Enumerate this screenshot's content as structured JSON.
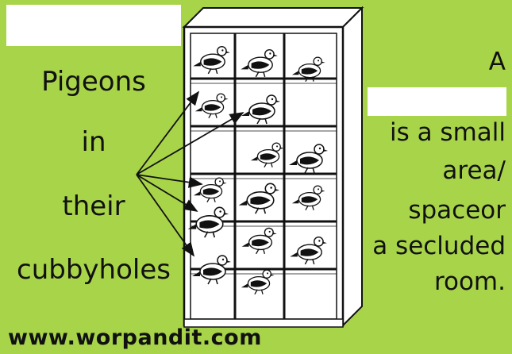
{
  "left_caption": {
    "lines": [
      "Pigeons",
      "in",
      "their",
      "cubbyholes"
    ]
  },
  "right_caption": {
    "first": "A",
    "lines": [
      "is a small",
      "area/",
      "spaceor",
      "a secluded",
      "room."
    ]
  },
  "footer": {
    "url": "www.worpandit.com"
  },
  "colors": {
    "background": "#a8d44a",
    "text": "#111111",
    "redaction": "#ffffff"
  }
}
